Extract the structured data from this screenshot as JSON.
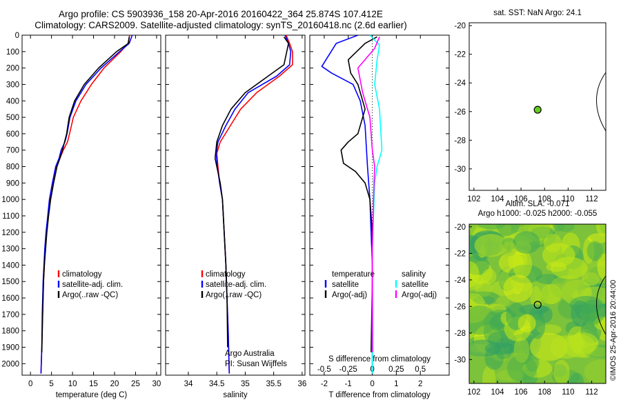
{
  "header": {
    "title_line1": "Argo profile: CS 5903936_158 20-Apr-2016 20160422_364 25.874S 107.412E",
    "title_line2": "Climatology: CARS2009. Satellite-adjusted climatology: synTS_20160418.nc (2.6d earlier)"
  },
  "colors": {
    "climatology": "#ff0000",
    "satellite": "#0000ff",
    "argo": "#000000",
    "satellite_salinity": "#00ffff",
    "argo_adj_salinity": "#ff00ff",
    "float_marker": "#66cc22"
  },
  "chart_data": [
    {
      "type": "line",
      "name": "temperature-panel",
      "xlabel": "temperature (deg C)",
      "ylabel": "",
      "xlim": [
        -2,
        31
      ],
      "ylim": [
        2070,
        0
      ],
      "xticks": [
        "0",
        "5",
        "10",
        "15",
        "20",
        "25",
        "30"
      ],
      "yticks": [
        "0",
        "100",
        "200",
        "300",
        "400",
        "500",
        "600",
        "700",
        "800",
        "900",
        "1000",
        "1100",
        "1200",
        "1300",
        "1400",
        "1500",
        "1600",
        "1700",
        "1800",
        "1900",
        "2000"
      ],
      "legend": {
        "placement": "center-left",
        "entries": [
          "climatology",
          "satellite-adj. clim.",
          "Argo(..raw -QC)"
        ]
      },
      "series": [
        {
          "name": "climatology",
          "color": "#ff0000",
          "x": [
            23.6,
            23.2,
            21.5,
            17.5,
            14.5,
            12,
            10.2,
            9.3,
            8.8,
            7.8,
            7,
            6.2,
            5.3,
            4.6,
            4.2,
            3.8,
            3.5,
            3.3,
            3.1,
            2.9,
            2.7,
            2.5
          ],
          "y": [
            0,
            50,
            100,
            200,
            300,
            400,
            500,
            600,
            650,
            700,
            750,
            800,
            900,
            1000,
            1100,
            1200,
            1300,
            1400,
            1500,
            1700,
            1900,
            2060
          ]
        },
        {
          "name": "satellite-adj. clim.",
          "color": "#0000ff",
          "x": [
            24.2,
            23.5,
            21.2,
            16.8,
            13.2,
            10.8,
            9.4,
            8.7,
            8.2,
            7.3,
            6.8,
            6,
            5.2,
            4.5,
            4.1,
            3.7,
            3.4,
            3.2,
            3,
            2.8,
            2.7,
            2.5
          ],
          "y": [
            0,
            50,
            100,
            200,
            300,
            400,
            500,
            600,
            650,
            700,
            750,
            800,
            900,
            1000,
            1100,
            1200,
            1300,
            1400,
            1500,
            1700,
            1900,
            2060
          ]
        },
        {
          "name": "Argo(..raw -QC)",
          "color": "#000000",
          "x": [
            23.5,
            23.3,
            20.5,
            16.2,
            12.8,
            10.5,
            9.2,
            8.6,
            7.6,
            7,
            6.3,
            5.5,
            4.8,
            4.3,
            3.9,
            3.6,
            3.3,
            3.1,
            2.9,
            2.7
          ],
          "y": [
            10,
            50,
            100,
            200,
            300,
            400,
            500,
            600,
            700,
            750,
            800,
            900,
            1000,
            1100,
            1200,
            1300,
            1400,
            1500,
            1700,
            1930
          ]
        }
      ]
    },
    {
      "type": "line",
      "name": "salinity-panel",
      "xlabel": "salinity",
      "ylabel": "",
      "xlim": [
        33.6,
        36.05
      ],
      "ylim": [
        2070,
        0
      ],
      "xticks": [
        "34",
        "34.5",
        "35",
        "35.5",
        "36"
      ],
      "legend": {
        "placement": "center-left",
        "entries": [
          "climatology",
          "satellite-adj. clim.",
          "Argo(..raw -QC)"
        ]
      },
      "annotation": [
        "Argo Australia",
        "PI: Susan Wijffels"
      ],
      "series": [
        {
          "name": "climatology",
          "color": "#ff0000",
          "x": [
            35.72,
            35.78,
            35.83,
            35.83,
            35.6,
            35.2,
            34.92,
            34.74,
            34.56,
            34.5,
            34.52,
            34.55,
            34.6,
            34.63,
            34.66,
            34.68,
            34.7,
            34.72
          ],
          "y": [
            0,
            50,
            100,
            180,
            250,
            350,
            450,
            550,
            650,
            720,
            800,
            900,
            1000,
            1200,
            1400,
            1600,
            1800,
            2060
          ]
        },
        {
          "name": "satellite-adj. clim.",
          "color": "#0000ff",
          "x": [
            35.7,
            35.76,
            35.8,
            35.78,
            35.55,
            35.05,
            34.82,
            34.66,
            34.52,
            34.49,
            34.51,
            34.55,
            34.6,
            34.63,
            34.66,
            34.68,
            34.7,
            34.72
          ],
          "y": [
            0,
            50,
            100,
            180,
            250,
            350,
            450,
            550,
            650,
            720,
            800,
            900,
            1000,
            1200,
            1400,
            1600,
            1800,
            2060
          ]
        },
        {
          "name": "Argo(..raw -QC)",
          "color": "#000000",
          "x": [
            35.68,
            35.76,
            35.73,
            35.68,
            35.4,
            35,
            34.75,
            34.6,
            34.5,
            34.47,
            34.5,
            34.56,
            34.6,
            34.63,
            34.66,
            34.68,
            34.69
          ],
          "y": [
            10,
            50,
            100,
            180,
            250,
            350,
            450,
            550,
            650,
            750,
            800,
            900,
            1000,
            1200,
            1400,
            1600,
            1900
          ]
        }
      ]
    },
    {
      "type": "line",
      "name": "difference-panel",
      "xlabel": "T difference from climatology",
      "ylabel": "",
      "top_axis_label": "S difference from climatology",
      "xlim": [
        -2.6,
        3.2
      ],
      "ylim": [
        2070,
        0
      ],
      "xticks": [
        "-2",
        "-1",
        "0",
        "1",
        "2"
      ],
      "sticks": [
        "-0.5",
        "-0.25",
        "0",
        "0.25",
        "0.5"
      ],
      "legend": {
        "placement": "center",
        "entries": [
          "temperature",
          "satellite",
          "Argo(-adj)",
          "salinity",
          "satellite",
          "Argo(-adj)"
        ]
      },
      "series": [
        {
          "name": "temperature satellite",
          "color": "#0000ff",
          "x": [
            -0.6,
            -1.5,
            -2.1,
            -1.7,
            -0.8,
            -0.5,
            -0.3,
            -0.2,
            -0.1,
            -0.05,
            0,
            0,
            0,
            0
          ],
          "y": [
            0,
            50,
            190,
            230,
            300,
            400,
            550,
            800,
            1000,
            1200,
            1400,
            1600,
            1800,
            2060
          ]
        },
        {
          "name": "temperature Argo(-adj)",
          "color": "#000000",
          "x": [
            0.2,
            -0.3,
            -1,
            -0.9,
            -0.6,
            -0.3,
            -0.6,
            -1,
            -1.3,
            -1.2,
            -0.7,
            -0.3,
            -0.1,
            0,
            0,
            -0.05
          ],
          "y": [
            10,
            50,
            150,
            230,
            300,
            450,
            600,
            650,
            700,
            780,
            830,
            900,
            1000,
            1200,
            1500,
            1930
          ]
        },
        {
          "name": "salinity satellite",
          "color": "#00ffff",
          "x": [
            -0.1,
            0.3,
            0.2,
            0.1,
            0.3,
            0.4,
            0.2,
            0.1,
            0.05,
            0,
            0,
            0
          ],
          "y": [
            0,
            60,
            150,
            300,
            450,
            700,
            800,
            900,
            1100,
            1300,
            1600,
            2060
          ]
        },
        {
          "name": "salinity Argo(-adj)",
          "color": "#ff00ff",
          "x": [
            0.3,
            0.1,
            -0.6,
            -0.4,
            -0.1,
            0,
            0.1,
            0.05,
            0,
            0.02
          ],
          "y": [
            10,
            80,
            200,
            350,
            500,
            700,
            800,
            1000,
            1300,
            1930
          ]
        }
      ]
    },
    {
      "type": "scatter",
      "name": "sst-map",
      "title": "sat. SST: NaN Argo: 24.1",
      "xlim": [
        101.6,
        113.2
      ],
      "ylim": [
        -31.5,
        -19.8
      ],
      "xticks": [
        "102",
        "104",
        "106",
        "108",
        "110",
        "112"
      ],
      "yticks": [
        "-20",
        "-22",
        "-24",
        "-26",
        "-28",
        "-30"
      ],
      "points": [
        {
          "x": 107.412,
          "y": -25.874
        }
      ]
    },
    {
      "type": "heatmap",
      "name": "sla-map",
      "title": [
        "Altim. SLA: -0.071",
        "Argo h1000: -0.025 h2000: -0.055"
      ],
      "xlim": [
        101.6,
        113.2
      ],
      "ylim": [
        -31.8,
        -19.8
      ],
      "xticks": [
        "102",
        "104",
        "106",
        "108",
        "110",
        "112"
      ],
      "yticks": [
        "-20",
        "-22",
        "-24",
        "-26",
        "-28",
        "-30"
      ],
      "points": [
        {
          "x": 107.412,
          "y": -25.874
        }
      ]
    }
  ],
  "footer": {
    "stamp": "©IMOS 25-Apr-2016 20:44:00"
  }
}
